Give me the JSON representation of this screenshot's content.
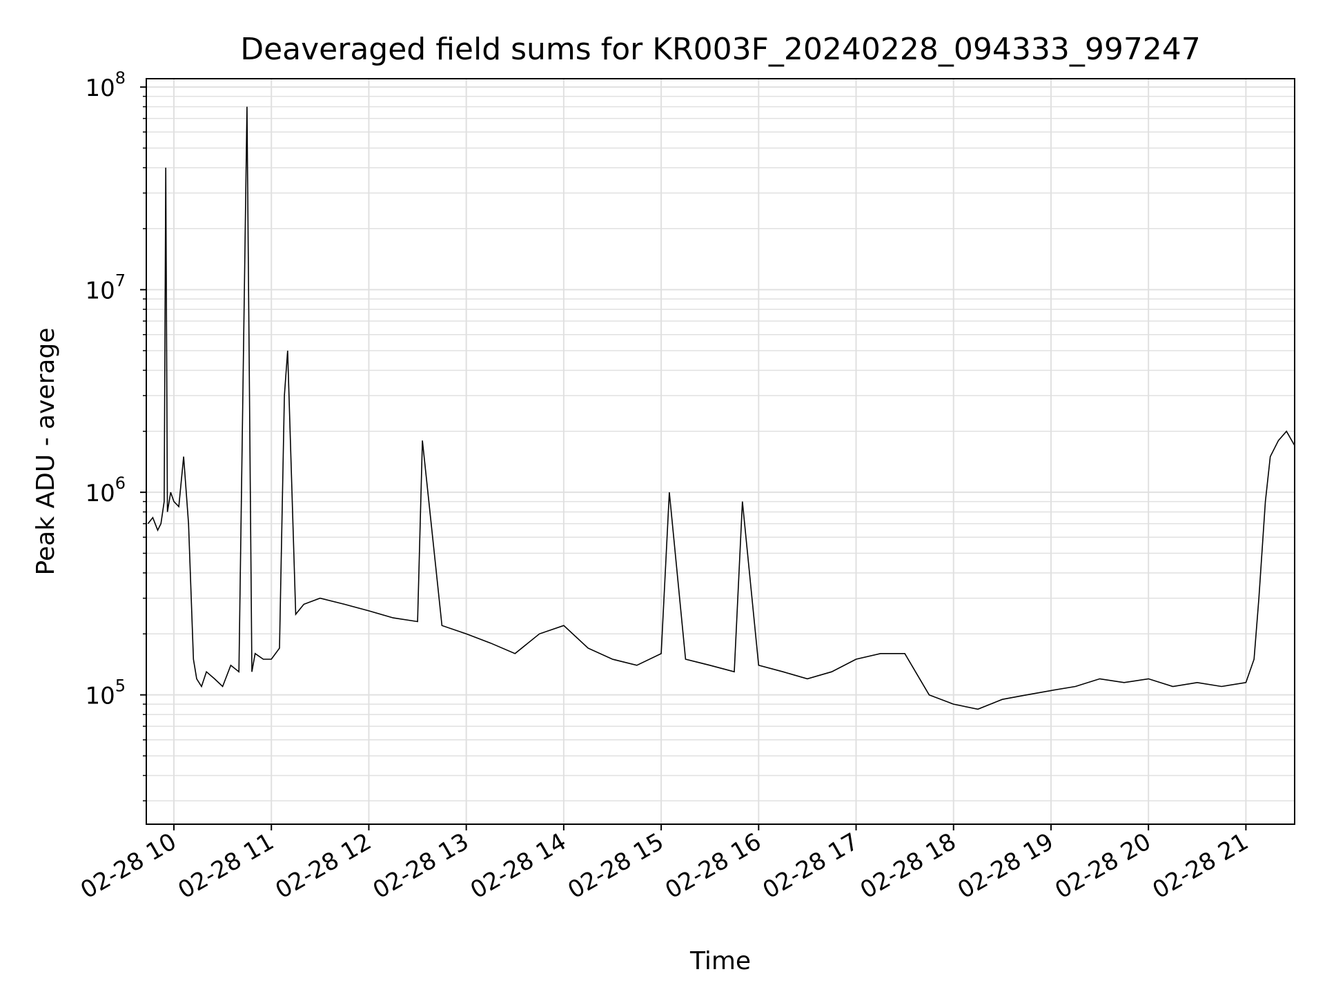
{
  "chart_data": {
    "type": "line",
    "title": "Deaveraged field sums for KR003F_20240228_094333_997247",
    "xlabel": "Time",
    "ylabel": "Peak ADU - average",
    "y_scale": "log",
    "ylim": [
      23000,
      110000000
    ],
    "xlim": [
      "02-28 09:43",
      "02-28 21:30"
    ],
    "grid": true,
    "x_ticks": [
      "02-28 10",
      "02-28 11",
      "02-28 12",
      "02-28 13",
      "02-28 14",
      "02-28 15",
      "02-28 16",
      "02-28 17",
      "02-28 18",
      "02-28 19",
      "02-28 20",
      "02-28 21"
    ],
    "y_ticks": [
      {
        "base": "10",
        "exp": "5",
        "value": 100000
      },
      {
        "base": "10",
        "exp": "6",
        "value": 1000000
      },
      {
        "base": "10",
        "exp": "7",
        "value": 10000000
      },
      {
        "base": "10",
        "exp": "8",
        "value": 100000000
      }
    ],
    "series": [
      {
        "color": "#000000",
        "x": [
          "02-28 09:44",
          "02-28 09:47",
          "02-28 09:50",
          "02-28 09:52",
          "02-28 09:54",
          "02-28 09:55",
          "02-28 09:56",
          "02-28 09:58",
          "02-28 10:00",
          "02-28 10:03",
          "02-28 10:06",
          "02-28 10:09",
          "02-28 10:12",
          "02-28 10:14",
          "02-28 10:17",
          "02-28 10:20",
          "02-28 10:25",
          "02-28 10:30",
          "02-28 10:35",
          "02-28 10:40",
          "02-28 10:45",
          "02-28 10:48",
          "02-28 10:50",
          "02-28 10:55",
          "02-28 11:00",
          "02-28 11:05",
          "02-28 11:08",
          "02-28 11:10",
          "02-28 11:15",
          "02-28 11:20",
          "02-28 11:30",
          "02-28 11:45",
          "02-28 12:00",
          "02-28 12:15",
          "02-28 12:30",
          "02-28 12:33",
          "02-28 12:45",
          "02-28 13:00",
          "02-28 13:15",
          "02-28 13:30",
          "02-28 13:45",
          "02-28 14:00",
          "02-28 14:15",
          "02-28 14:30",
          "02-28 14:45",
          "02-28 15:00",
          "02-28 15:05",
          "02-28 15:15",
          "02-28 15:30",
          "02-28 15:45",
          "02-28 15:50",
          "02-28 16:00",
          "02-28 16:15",
          "02-28 16:30",
          "02-28 16:45",
          "02-28 17:00",
          "02-28 17:15",
          "02-28 17:30",
          "02-28 17:45",
          "02-28 18:00",
          "02-28 18:15",
          "02-28 18:30",
          "02-28 18:45",
          "02-28 19:00",
          "02-28 19:15",
          "02-28 19:30",
          "02-28 19:45",
          "02-28 20:00",
          "02-28 20:15",
          "02-28 20:30",
          "02-28 20:45",
          "02-28 21:00",
          "02-28 21:05",
          "02-28 21:08",
          "02-28 21:12",
          "02-28 21:15",
          "02-28 21:20",
          "02-28 21:25",
          "02-28 21:30"
        ],
        "values": [
          700000,
          750000,
          650000,
          700000,
          900000,
          40000000,
          800000,
          1000000,
          900000,
          850000,
          1500000,
          700000,
          150000,
          120000,
          110000,
          130000,
          120000,
          110000,
          140000,
          130000,
          80000000,
          130000,
          160000,
          150000,
          150000,
          170000,
          3000000,
          5000000,
          250000,
          280000,
          300000,
          280000,
          260000,
          240000,
          230000,
          1800000,
          220000,
          200000,
          180000,
          160000,
          200000,
          220000,
          170000,
          150000,
          140000,
          160000,
          1000000,
          150000,
          140000,
          130000,
          900000,
          140000,
          130000,
          120000,
          130000,
          150000,
          160000,
          160000,
          100000,
          90000,
          85000,
          95000,
          100000,
          105000,
          110000,
          120000,
          115000,
          120000,
          110000,
          115000,
          110000,
          115000,
          150000,
          300000,
          900000,
          1500000,
          1800000,
          2000000,
          1700000
        ]
      }
    ]
  }
}
